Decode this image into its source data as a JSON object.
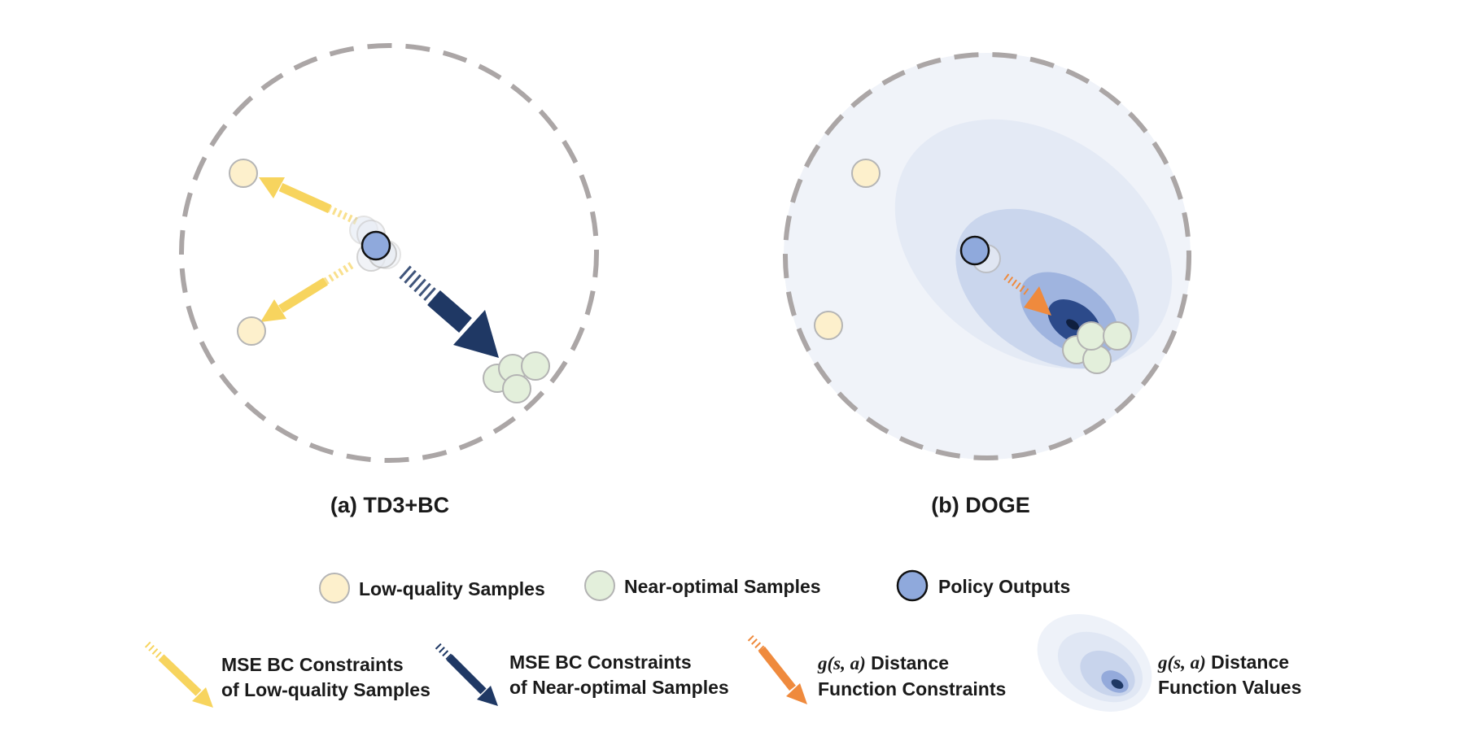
{
  "captions": {
    "a": "(a) TD3+BC",
    "b": "(b) DOGE"
  },
  "legend": {
    "low_quality": "Low-quality Samples",
    "near_optimal": "Near-optimal Samples",
    "policy_outputs": "Policy Outputs",
    "mse_low_line1": "MSE BC Constraints",
    "mse_low_line2": "of Low-quality Samples",
    "mse_near_line1": "MSE BC Constraints",
    "mse_near_line2": "of Near-optimal Samples",
    "g_math": "g(s, a)",
    "g_constraints_line1": " Distance",
    "g_constraints_line2": "Function Constraints",
    "g_values_line1": " Distance",
    "g_values_line2": "Function Values"
  },
  "colors": {
    "low_quality_fill": "#fdf0cc",
    "near_optimal_fill": "#e3efdb",
    "policy_fill": "#8fa9dc",
    "yellow_arrow": "#f7d45e",
    "navy_arrow": "#1f3864",
    "orange_arrow": "#ef8a3d",
    "dashed_circle": "#aba6a6"
  }
}
